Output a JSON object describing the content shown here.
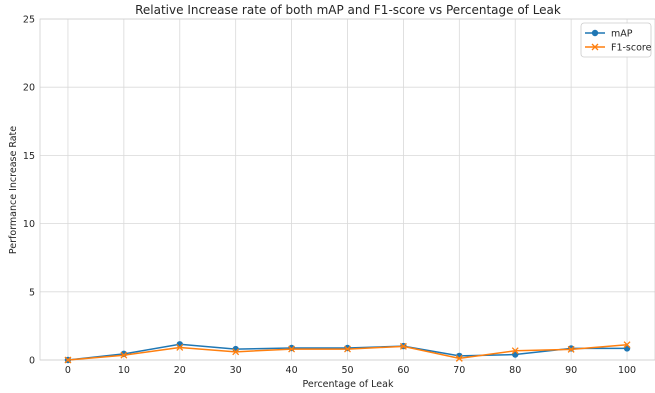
{
  "chart_data": {
    "type": "line",
    "title": "Relative Increase rate of both mAP and F1-score vs Percentage of Leak",
    "xlabel": "Percentage of Leak",
    "ylabel": "Performance Increase Rate",
    "x": [
      0,
      10,
      20,
      30,
      40,
      50,
      60,
      70,
      80,
      90,
      100
    ],
    "xticks": [
      0,
      10,
      20,
      30,
      40,
      50,
      60,
      70,
      80,
      90,
      100
    ],
    "yticks": [
      0,
      5,
      10,
      15,
      20,
      25
    ],
    "xlim": [
      -5,
      105
    ],
    "ylim": [
      0,
      25
    ],
    "grid": true,
    "legend_position": "top-right",
    "series": [
      {
        "name": "mAP",
        "color": "#1f77b4",
        "marker": "circle",
        "values": [
          0.0,
          0.45,
          1.15,
          0.8,
          0.88,
          0.88,
          1.02,
          0.3,
          0.4,
          0.85,
          0.85
        ]
      },
      {
        "name": "F1-score",
        "color": "#ff7f0e",
        "marker": "x",
        "values": [
          0.0,
          0.35,
          0.92,
          0.6,
          0.8,
          0.8,
          1.0,
          0.12,
          0.68,
          0.78,
          1.12
        ]
      }
    ]
  }
}
